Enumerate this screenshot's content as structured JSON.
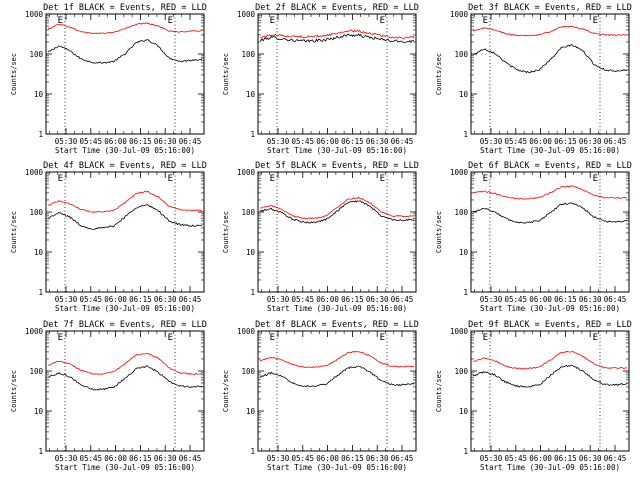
{
  "figure": {
    "x_axis_title": "Start Time (30-Jul-09 05:16:00)",
    "y_axis_title": "Counts/sec",
    "colors": {
      "events": "#000000",
      "lld": "#ff0000",
      "frame": "#000000",
      "background": "#ffffff"
    }
  },
  "chart_data": [
    {
      "type": "line",
      "title": "Det 1f BLACK = Events, RED = LLD",
      "x_ticks": [
        "05:30",
        "05:45",
        "06:00",
        "06:15",
        "06:30",
        "06:45"
      ],
      "y_ticks": [
        "1",
        "10",
        "100",
        "1000"
      ],
      "ylim": [
        1,
        1000
      ],
      "yscale": "log",
      "markers": [
        "E",
        "E"
      ],
      "series": [
        {
          "name": "Events",
          "values": [
            110,
            160,
            120,
            75,
            62,
            60,
            65,
            100,
            190,
            230,
            160,
            80,
            65,
            70,
            75
          ]
        },
        {
          "name": "LLD",
          "values": [
            420,
            560,
            470,
            360,
            330,
            330,
            345,
            430,
            560,
            590,
            500,
            380,
            355,
            370,
            385
          ]
        }
      ]
    },
    {
      "type": "line",
      "title": "Det 2f BLACK = Events, RED = LLD",
      "x_ticks": [
        "05:30",
        "05:45",
        "06:00",
        "06:15",
        "06:30",
        "06:45"
      ],
      "y_ticks": [
        "1",
        "10",
        "100",
        "1000"
      ],
      "ylim": [
        1,
        1000
      ],
      "yscale": "log",
      "markers": [
        "E",
        "E"
      ],
      "series": [
        {
          "name": "Events",
          "values": [
            220,
            260,
            240,
            220,
            210,
            215,
            225,
            260,
            300,
            290,
            260,
            230,
            210,
            205,
            210
          ]
        },
        {
          "name": "LLD",
          "values": [
            260,
            300,
            290,
            275,
            270,
            275,
            290,
            330,
            380,
            370,
            330,
            290,
            265,
            255,
            260
          ]
        }
      ]
    },
    {
      "type": "line",
      "title": "Det 3f BLACK = Events, RED = LLD",
      "x_ticks": [
        "05:30",
        "05:45",
        "06:00",
        "06:15",
        "06:30",
        "06:45"
      ],
      "y_ticks": [
        "1",
        "10",
        "100",
        "1000"
      ],
      "ylim": [
        1,
        1000
      ],
      "yscale": "log",
      "markers": [
        "E",
        "E"
      ],
      "series": [
        {
          "name": "Events",
          "values": [
            95,
            135,
            105,
            60,
            40,
            35,
            40,
            70,
            140,
            170,
            120,
            55,
            40,
            38,
            40
          ]
        },
        {
          "name": "LLD",
          "values": [
            370,
            450,
            400,
            320,
            290,
            290,
            300,
            360,
            470,
            490,
            420,
            330,
            300,
            295,
            300
          ]
        }
      ]
    },
    {
      "type": "line",
      "title": "Det 4f BLACK = Events, RED = LLD",
      "x_ticks": [
        "05:30",
        "05:45",
        "06:00",
        "06:15",
        "06:30",
        "06:45"
      ],
      "y_ticks": [
        "1",
        "10",
        "100",
        "1000"
      ],
      "ylim": [
        1,
        1000
      ],
      "yscale": "log",
      "markers": [
        "E",
        "E"
      ],
      "series": [
        {
          "name": "Events",
          "values": [
            70,
            95,
            75,
            45,
            38,
            40,
            45,
            75,
            130,
            150,
            110,
            60,
            48,
            45,
            45
          ]
        },
        {
          "name": "LLD",
          "values": [
            150,
            190,
            160,
            115,
            100,
            100,
            110,
            170,
            290,
            330,
            240,
            140,
            115,
            110,
            110
          ]
        }
      ]
    },
    {
      "type": "line",
      "title": "Det 5f BLACK = Events, RED = LLD",
      "x_ticks": [
        "05:30",
        "05:45",
        "06:00",
        "06:15",
        "06:30",
        "06:45"
      ],
      "y_ticks": [
        "1",
        "10",
        "100",
        "1000"
      ],
      "ylim": [
        1,
        1000
      ],
      "yscale": "log",
      "markers": [
        "E",
        "E"
      ],
      "series": [
        {
          "name": "Events",
          "values": [
            105,
            120,
            95,
            65,
            55,
            55,
            65,
            105,
            175,
            190,
            140,
            80,
            65,
            62,
            65
          ]
        },
        {
          "name": "LLD",
          "values": [
            125,
            145,
            115,
            80,
            70,
            70,
            80,
            130,
            210,
            230,
            170,
            100,
            80,
            78,
            80
          ]
        }
      ]
    },
    {
      "type": "line",
      "title": "Det 6f BLACK = Events, RED = LLD",
      "x_ticks": [
        "05:30",
        "05:45",
        "06:00",
        "06:15",
        "06:30",
        "06:45"
      ],
      "y_ticks": [
        "1",
        "10",
        "100",
        "1000"
      ],
      "ylim": [
        1,
        1000
      ],
      "yscale": "log",
      "markers": [
        "E",
        "E"
      ],
      "series": [
        {
          "name": "Events",
          "values": [
            100,
            125,
            100,
            68,
            55,
            55,
            60,
            95,
            155,
            170,
            125,
            75,
            58,
            57,
            60
          ]
        },
        {
          "name": "LLD",
          "values": [
            300,
            330,
            290,
            240,
            215,
            215,
            230,
            300,
            420,
            450,
            360,
            260,
            230,
            225,
            230
          ]
        }
      ]
    },
    {
      "type": "line",
      "title": "Det 7f BLACK = Events, RED = LLD",
      "x_ticks": [
        "05:30",
        "05:45",
        "06:00",
        "06:15",
        "06:30",
        "06:45"
      ],
      "y_ticks": [
        "1",
        "10",
        "100",
        "1000"
      ],
      "ylim": [
        1,
        1000
      ],
      "yscale": "log",
      "markers": [
        "E",
        "E"
      ],
      "series": [
        {
          "name": "Events",
          "values": [
            70,
            90,
            72,
            45,
            35,
            35,
            40,
            65,
            115,
            130,
            95,
            55,
            42,
            40,
            42
          ]
        },
        {
          "name": "LLD",
          "values": [
            140,
            180,
            150,
            105,
            85,
            85,
            95,
            150,
            250,
            280,
            210,
            120,
            90,
            85,
            85
          ]
        }
      ]
    },
    {
      "type": "line",
      "title": "Det 8f BLACK = Events, RED = LLD",
      "x_ticks": [
        "05:30",
        "05:45",
        "06:00",
        "06:15",
        "06:30",
        "06:45"
      ],
      "y_ticks": [
        "1",
        "10",
        "100",
        "1000"
      ],
      "ylim": [
        1,
        1000
      ],
      "yscale": "log",
      "markers": [
        "E",
        "E"
      ],
      "series": [
        {
          "name": "Events",
          "values": [
            70,
            90,
            75,
            50,
            42,
            42,
            48,
            75,
            120,
            130,
            95,
            58,
            45,
            45,
            48
          ]
        },
        {
          "name": "LLD",
          "values": [
            180,
            220,
            190,
            145,
            125,
            125,
            135,
            190,
            290,
            310,
            240,
            160,
            130,
            128,
            130
          ]
        }
      ]
    },
    {
      "type": "line",
      "title": "Det 9f BLACK = Events, RED = LLD",
      "x_ticks": [
        "05:30",
        "05:45",
        "06:00",
        "06:15",
        "06:30",
        "06:45"
      ],
      "y_ticks": [
        "1",
        "10",
        "100",
        "1000"
      ],
      "ylim": [
        1,
        1000
      ],
      "yscale": "log",
      "markers": [
        "E",
        "E"
      ],
      "series": [
        {
          "name": "Events",
          "values": [
            75,
            95,
            80,
            52,
            42,
            40,
            45,
            75,
            125,
            140,
            100,
            60,
            46,
            45,
            48
          ]
        },
        {
          "name": "LLD",
          "values": [
            170,
            210,
            180,
            130,
            115,
            115,
            125,
            185,
            290,
            310,
            230,
            150,
            120,
            118,
            120
          ]
        }
      ]
    }
  ]
}
